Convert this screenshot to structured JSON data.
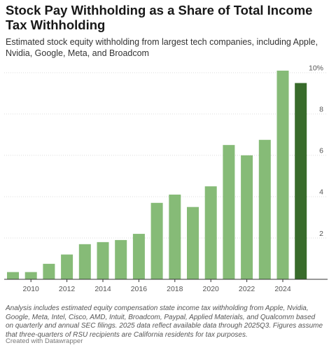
{
  "chart_data": {
    "type": "bar",
    "title": "Stock Pay Withholding as a Share of Total Income Tax Withholding",
    "subtitle": "Estimated stock equity withholding from largest tech companies, including Apple, Nvidia, Google, Meta, and Broadcom",
    "categories": [
      null,
      "2010",
      null,
      "2012",
      null,
      "2014",
      null,
      "2016",
      null,
      "2018",
      null,
      "2020",
      null,
      "2022",
      null,
      "2024",
      null
    ],
    "values": [
      0.35,
      0.35,
      0.75,
      1.2,
      1.7,
      1.8,
      1.9,
      2.2,
      3.7,
      4.1,
      3.5,
      4.5,
      6.5,
      6.0,
      6.75,
      10.1,
      9.5
    ],
    "colors": [
      "#86bb77",
      "#86bb77",
      "#86bb77",
      "#86bb77",
      "#86bb77",
      "#86bb77",
      "#86bb77",
      "#86bb77",
      "#86bb77",
      "#86bb77",
      "#86bb77",
      "#86bb77",
      "#86bb77",
      "#86bb77",
      "#86bb77",
      "#86bb77",
      "#386b2b"
    ],
    "ylim": [
      0,
      10.3
    ],
    "yticks": [
      2,
      4,
      6,
      8,
      {
        "value": 10,
        "label": "10%"
      }
    ],
    "grid": true,
    "notes": "Analysis includes estimated equity compensation state income tax withholding from Apple, Nvidia, Google, Meta, Intel, Cisco, AMD, Intuit, Broadcom, Paypal, Applied Materials, and Qualcomm based on quarterly and annual SEC filings. 2025 data reflect available data through 2025Q3. Figures assume that three-quarters of RSU recipients are California residents for tax purposes.",
    "credit": "Created with Datawrapper"
  }
}
